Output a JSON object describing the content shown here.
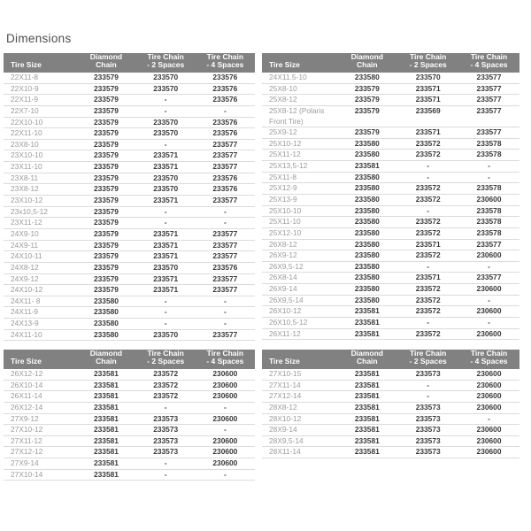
{
  "page": {
    "title": "Dimensions"
  },
  "colors": {
    "header_bg": "#818181",
    "header_text": "#ffffff",
    "tire_size_text": "#9b9b9b",
    "part_number_text": "#3a3a3a",
    "row_border": "#dbdbdb",
    "title_text": "#4d4d4d"
  },
  "columns": [
    "Tire Size",
    "Diamond\nChain",
    "Tire Chain\n- 2 Spaces",
    "Tire Chain\n- 4 Spaces"
  ],
  "tables": [
    {
      "position": "top-left",
      "rows": [
        [
          "22X11-8",
          "233579",
          "233570",
          "233576"
        ],
        [
          "22X10-9",
          "233579",
          "233570",
          "233576"
        ],
        [
          "22X11-9",
          "233579",
          "-",
          "233576"
        ],
        [
          "22X7-10",
          "233579",
          "-",
          "-"
        ],
        [
          "22X10-10",
          "233579",
          "233570",
          "233576"
        ],
        [
          "22X11-10",
          "233579",
          "233570",
          "233576"
        ],
        [
          "23X8-10",
          "233579",
          "-",
          "233577"
        ],
        [
          "23X10-10",
          "233579",
          "233571",
          "233577"
        ],
        [
          "23X11-10",
          "233579",
          "233571",
          "233577"
        ],
        [
          "23X8-11",
          "233579",
          "233570",
          "233576"
        ],
        [
          "23X8-12",
          "233579",
          "233570",
          "233576"
        ],
        [
          "23X10-12",
          "233579",
          "233571",
          "233577"
        ],
        [
          "23x10,5-12",
          "233579",
          "-",
          "-"
        ],
        [
          "23X11-12",
          "233579",
          "-",
          "-"
        ],
        [
          "24X9-10",
          "233579",
          "233571",
          "233577"
        ],
        [
          "24X9-11",
          "233579",
          "233571",
          "233577"
        ],
        [
          "24X10-11",
          "233579",
          "233571",
          "233577"
        ],
        [
          "24X8-12",
          "233579",
          "233570",
          "233576"
        ],
        [
          "24X9-12",
          "233579",
          "233571",
          "233577"
        ],
        [
          "24X10-12",
          "233579",
          "233571",
          "233577"
        ],
        [
          "24X11- 8",
          "233580",
          "-",
          "-"
        ],
        [
          "24X11-9",
          "233580",
          "-",
          "-"
        ],
        [
          "24X13-9",
          "233580",
          "-",
          "-"
        ],
        [
          "24X11-10",
          "233580",
          "233570",
          "233577"
        ]
      ]
    },
    {
      "position": "top-right",
      "rows": [
        [
          "24X11.5-10",
          "233580",
          "233570",
          "233577"
        ],
        [
          "25X8-10",
          "233579",
          "233571",
          "233577"
        ],
        [
          "25X8-12",
          "233579",
          "233571",
          "233577"
        ],
        [
          "25X8-12 (Polaris Front Tire)",
          "233579",
          "233569",
          "233577"
        ],
        [
          "25X9-12",
          "233579",
          "233571",
          "233577"
        ],
        [
          "25X10-12",
          "233580",
          "233572",
          "233578"
        ],
        [
          "25X11-12",
          "233580",
          "233572",
          "233578"
        ],
        [
          "25X13,5-12",
          "233581",
          "-",
          "-"
        ],
        [
          "25X11-8",
          "233580",
          "-",
          "-"
        ],
        [
          "25X12-9",
          "233580",
          "233572",
          "233578"
        ],
        [
          "25X13-9",
          "233580",
          "233572",
          "230600"
        ],
        [
          "25X10-10",
          "233580",
          "-",
          "233578"
        ],
        [
          "25X11-10",
          "233580",
          "233572",
          "233578"
        ],
        [
          "25X12-10",
          "233580",
          "233572",
          "233578"
        ],
        [
          "26X8-12",
          "233580",
          "233571",
          "233577"
        ],
        [
          "26X9-12",
          "233580",
          "233572",
          "230600"
        ],
        [
          "26X9,5-12",
          "233580",
          "-",
          "-"
        ],
        [
          "26X8-14",
          "233580",
          "233571",
          "233577"
        ],
        [
          "26X9-14",
          "233580",
          "233572",
          "230600"
        ],
        [
          "26X9,5-14",
          "233580",
          "233572",
          "-"
        ],
        [
          "26X10-12",
          "233581",
          "233572",
          "230600"
        ],
        [
          "26X10,5-12",
          "233581",
          "-",
          "-"
        ],
        [
          "26X11-12",
          "233581",
          "233572",
          "230600"
        ]
      ]
    },
    {
      "position": "bottom-left",
      "rows": [
        [
          "26X12-12",
          "233581",
          "233572",
          "230600"
        ],
        [
          "26X10-14",
          "233581",
          "233572",
          "230600"
        ],
        [
          "26X11-14",
          "233581",
          "233572",
          "230600"
        ],
        [
          "26X12-14",
          "233581",
          "-",
          "-"
        ],
        [
          "27X9-12",
          "233581",
          "233573",
          "230600"
        ],
        [
          "27X10-12",
          "233581",
          "233573",
          "-"
        ],
        [
          "27X11-12",
          "233581",
          "233573",
          "230600"
        ],
        [
          "27X12-12",
          "233581",
          "233573",
          "230600"
        ],
        [
          "27X9-14",
          "233581",
          "-",
          "230600"
        ],
        [
          "27X10-14",
          "233581",
          "-",
          "-"
        ]
      ]
    },
    {
      "position": "bottom-right",
      "rows": [
        [
          "27X10-15",
          "233581",
          "233573",
          "230600"
        ],
        [
          "27X11-14",
          "233581",
          "-",
          "230600"
        ],
        [
          "27X12-14",
          "233581",
          "-",
          "230600"
        ],
        [
          "28X8-12",
          "233581",
          "233573",
          "230600"
        ],
        [
          "28X10-12",
          "233581",
          "233573",
          "-"
        ],
        [
          "28X9-14",
          "233581",
          "233573",
          "230600"
        ],
        [
          "28X9,5-14",
          "233581",
          "233573",
          "230600"
        ],
        [
          "28X11-14",
          "233581",
          "233573",
          "230600"
        ]
      ]
    }
  ]
}
